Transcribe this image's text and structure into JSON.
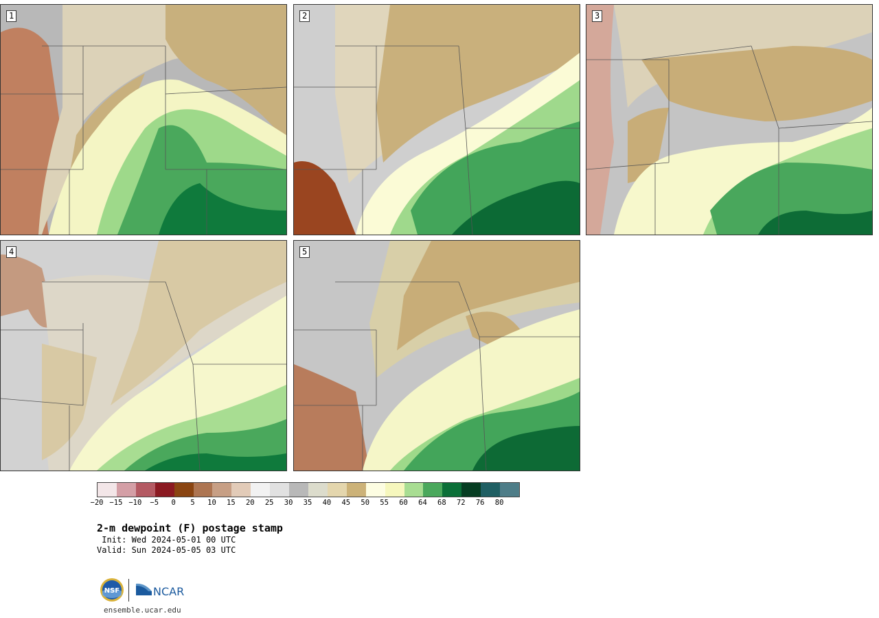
{
  "panels": [
    {
      "label": "1",
      "palette": [
        "#dcd2b8",
        "#c8b07d",
        "#f4f5c4",
        "#9ed98a",
        "#4aa85c",
        "#0f7a3c",
        "#b8b8b8",
        "#c08060"
      ]
    },
    {
      "label": "2",
      "palette": [
        "#e0d6bc",
        "#c9b07c",
        "#fbfbd6",
        "#9fd98c",
        "#43a55a",
        "#0c6a35",
        "#cfcfcf",
        "#9a4520"
      ]
    },
    {
      "label": "3",
      "palette": [
        "#dcd2b8",
        "#c8ad78",
        "#f7f8cc",
        "#a3db8e",
        "#49a75c",
        "#0d6c36",
        "#c4c4c4",
        "#d4a89a"
      ]
    },
    {
      "label": "4",
      "palette": [
        "#ddd7c8",
        "#d8c9a4",
        "#f6f7cc",
        "#a8dd92",
        "#4aa85c",
        "#0f7a3c",
        "#d2d2d2",
        "#c49a80"
      ]
    },
    {
      "label": "5",
      "palette": [
        "#d8cfa8",
        "#c8ad78",
        "#f5f6c8",
        "#9ed98a",
        "#43a55a",
        "#0d6a35",
        "#c6c6c6",
        "#b87c5c"
      ]
    }
  ],
  "colorbar": {
    "colors": [
      "#f3e6e8",
      "#d49fa6",
      "#b45a63",
      "#8b1a22",
      "#8a4512",
      "#ad7552",
      "#c79f85",
      "#e2cbb8",
      "#f2f2f2",
      "#e1e1e1",
      "#b8b8b8",
      "#dcdccc",
      "#e4d6ad",
      "#ccb278",
      "#fdfde2",
      "#f6f7bd",
      "#a8dd92",
      "#4aa85c",
      "#0b6f38",
      "#063d22",
      "#1f5f63",
      "#4e7d88"
    ],
    "ticks": [
      "−20",
      "−15",
      "−10",
      "−5",
      "0",
      "5",
      "10",
      "15",
      "20",
      "25",
      "30",
      "35",
      "40",
      "45",
      "50",
      "55",
      "60",
      "64",
      "68",
      "72",
      "76",
      "80"
    ]
  },
  "title": "2-m dewpoint (F) postage stamp",
  "init_line": " Init: Wed 2024-05-01 00 UTC",
  "valid_line": "Valid: Sun 2024-05-05 03 UTC",
  "logos": {
    "nsf": "NSF",
    "ncar": "NCAR"
  },
  "site": "ensemble.ucar.edu"
}
